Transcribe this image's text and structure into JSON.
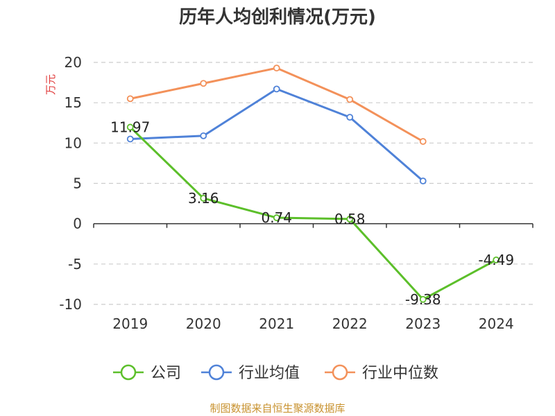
{
  "chart_data": {
    "type": "line",
    "title": "历年人均创利情况(万元)",
    "ylabel": "万元",
    "xlabel": "",
    "categories": [
      "2019",
      "2020",
      "2021",
      "2022",
      "2023",
      "2024"
    ],
    "ylim": [
      -10,
      20
    ],
    "yticks": [
      -10,
      -5,
      0,
      5,
      10,
      15,
      20
    ],
    "grid": true,
    "legend_position": "bottom",
    "series": [
      {
        "name": "公司",
        "color": "#5cbf2a",
        "values": [
          11.97,
          3.16,
          0.74,
          0.58,
          -9.38,
          -4.49
        ],
        "labels": [
          "11.97",
          "3.16",
          "0.74",
          "0.58",
          "-9.38",
          "-4.49"
        ]
      },
      {
        "name": "行业均值",
        "color": "#4f82d8",
        "values": [
          10.5,
          10.9,
          16.7,
          13.2,
          5.3,
          null
        ]
      },
      {
        "name": "行业中位数",
        "color": "#f3915a",
        "values": [
          15.5,
          17.4,
          19.3,
          15.4,
          10.2,
          null
        ]
      }
    ]
  },
  "footer": "制图数据来自恒生聚源数据库"
}
